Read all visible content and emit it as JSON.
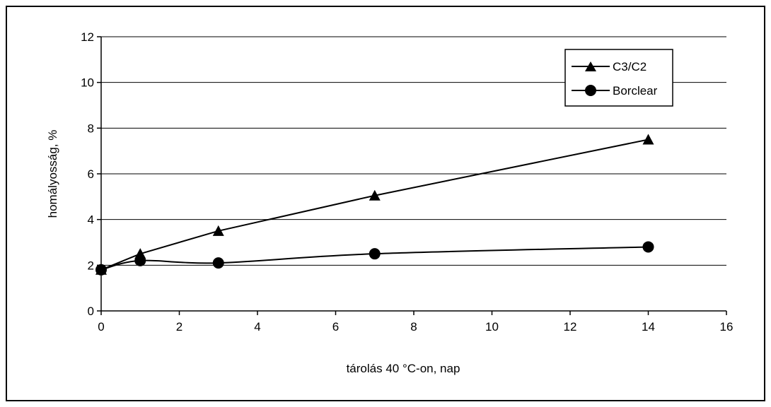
{
  "chart_data": {
    "type": "line",
    "title": "",
    "xlabel": "tárolás 40 °C-on, nap",
    "ylabel": "homályosság, %",
    "xlim": [
      0,
      16
    ],
    "ylim": [
      0,
      12
    ],
    "xticks": [
      0,
      2,
      4,
      6,
      8,
      10,
      12,
      14,
      16
    ],
    "yticks": [
      0,
      2,
      4,
      6,
      8,
      10,
      12
    ],
    "grid": "horizontal",
    "legend_position": "top-right",
    "series": [
      {
        "name": "C3/C2",
        "marker": "triangle",
        "color": "#000000",
        "x": [
          0,
          1,
          3,
          7,
          14
        ],
        "y": [
          1.8,
          2.5,
          3.5,
          5.05,
          7.5
        ]
      },
      {
        "name": "Borclear",
        "marker": "circle",
        "color": "#000000",
        "x": [
          0,
          1,
          3,
          7,
          14
        ],
        "y": [
          1.8,
          2.2,
          2.1,
          2.5,
          2.8
        ]
      }
    ]
  }
}
